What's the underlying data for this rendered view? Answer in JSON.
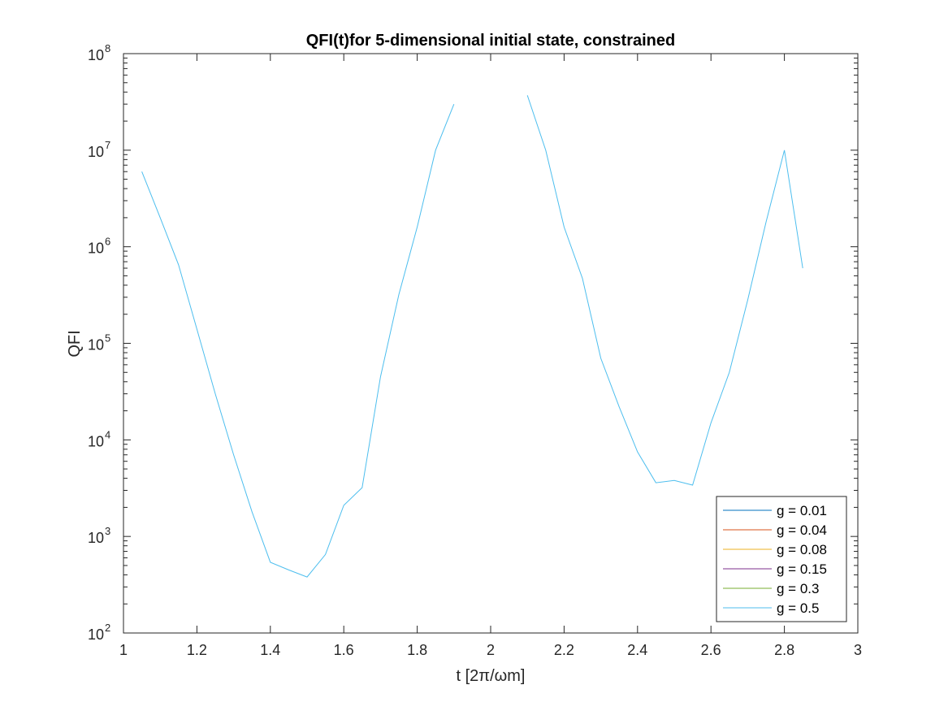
{
  "chart_data": {
    "type": "line",
    "title": "QFI(t)for 5-dimensional initial state, constrained",
    "xlabel": "t [2π/ωm]",
    "ylabel": "QFI",
    "xlim": [
      1,
      3
    ],
    "ylim": [
      100,
      100000000
    ],
    "yscale": "log",
    "grid": false,
    "legend_location": "bottom-right",
    "x_ticks": [
      "1",
      "1.2",
      "1.4",
      "1.6",
      "1.8",
      "2",
      "2.2",
      "2.4",
      "2.6",
      "2.8",
      "3"
    ],
    "y_ticks": [
      {
        "base": "10",
        "exp": "2"
      },
      {
        "base": "10",
        "exp": "3"
      },
      {
        "base": "10",
        "exp": "4"
      },
      {
        "base": "10",
        "exp": "5"
      },
      {
        "base": "10",
        "exp": "6"
      },
      {
        "base": "10",
        "exp": "7"
      },
      {
        "base": "10",
        "exp": "8"
      }
    ],
    "series": [
      {
        "name": "g = 0.01",
        "color": "#0072BD",
        "points": []
      },
      {
        "name": "g = 0.04",
        "color": "#D95319",
        "points": []
      },
      {
        "name": "g = 0.08",
        "color": "#EDB120",
        "points": []
      },
      {
        "name": "g = 0.15",
        "color": "#7E2F8E",
        "points": []
      },
      {
        "name": "g = 0.3",
        "color": "#77AC30",
        "points": []
      },
      {
        "name": "g = 0.5",
        "color": "#4DBEEE",
        "points": [
          [
            [
              1.05,
              6000000
            ],
            [
              1.1,
              2000000
            ],
            [
              1.15,
              650000
            ],
            [
              1.2,
              140000
            ],
            [
              1.25,
              30000
            ],
            [
              1.3,
              7000
            ],
            [
              1.35,
              1800
            ],
            [
              1.4,
              540
            ],
            [
              1.45,
              450
            ],
            [
              1.5,
              380
            ],
            [
              1.55,
              650
            ],
            [
              1.6,
              2100
            ],
            [
              1.65,
              3200
            ],
            [
              1.7,
              45000
            ],
            [
              1.75,
              320000
            ],
            [
              1.8,
              1600000
            ],
            [
              1.85,
              10000000
            ],
            [
              1.9,
              30000000
            ]
          ],
          [
            [
              2.1,
              37000000
            ],
            [
              2.15,
              10000000
            ],
            [
              2.2,
              1600000
            ],
            [
              2.25,
              470000
            ],
            [
              2.3,
              70000
            ],
            [
              2.35,
              22000
            ],
            [
              2.4,
              7500
            ],
            [
              2.45,
              3600
            ],
            [
              2.5,
              3800
            ],
            [
              2.55,
              3400
            ],
            [
              2.6,
              15000
            ],
            [
              2.65,
              50000
            ],
            [
              2.7,
              280000
            ],
            [
              2.75,
              1800000
            ],
            [
              2.8,
              10000000
            ],
            [
              2.85,
              600000
            ]
          ]
        ]
      }
    ]
  }
}
